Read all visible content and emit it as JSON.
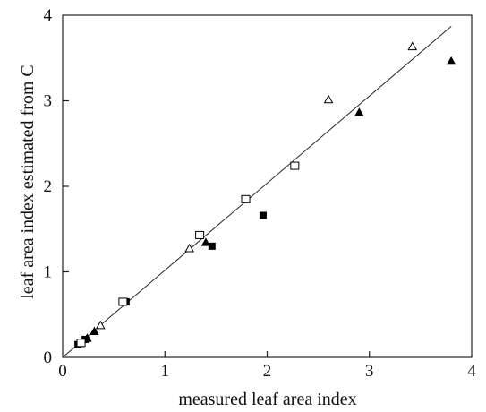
{
  "chart_data": {
    "type": "scatter",
    "title": "",
    "xlabel": "measured leaf area index",
    "ylabel": "leaf area index estimated from C",
    "xlim": [
      0,
      4
    ],
    "ylim": [
      0,
      4
    ],
    "x_ticks": [
      "0",
      "1",
      "2",
      "3",
      "4"
    ],
    "y_ticks": [
      "0",
      "1",
      "2",
      "3",
      "4"
    ],
    "grid": false,
    "legend": "none",
    "reference_line": {
      "label": "",
      "x": [
        0,
        3.8
      ],
      "y": [
        0,
        3.87
      ]
    },
    "series": [
      {
        "marker": "triangle-filled",
        "points": [
          {
            "x": 0.17,
            "y": 0.16
          },
          {
            "x": 0.24,
            "y": 0.22
          },
          {
            "x": 0.31,
            "y": 0.3
          },
          {
            "x": 1.4,
            "y": 1.34
          },
          {
            "x": 2.9,
            "y": 2.86
          },
          {
            "x": 3.8,
            "y": 3.46
          }
        ]
      },
      {
        "marker": "triangle-open",
        "points": [
          {
            "x": 0.37,
            "y": 0.37
          },
          {
            "x": 1.24,
            "y": 1.27
          },
          {
            "x": 2.6,
            "y": 3.01
          },
          {
            "x": 3.42,
            "y": 3.63
          }
        ]
      },
      {
        "marker": "square-filled",
        "points": [
          {
            "x": 0.15,
            "y": 0.15
          },
          {
            "x": 0.22,
            "y": 0.21
          },
          {
            "x": 0.62,
            "y": 0.65
          },
          {
            "x": 1.46,
            "y": 1.3
          },
          {
            "x": 1.96,
            "y": 1.66
          }
        ]
      },
      {
        "marker": "square-open",
        "points": [
          {
            "x": 0.18,
            "y": 0.17
          },
          {
            "x": 0.59,
            "y": 0.65
          },
          {
            "x": 1.34,
            "y": 1.43
          },
          {
            "x": 1.79,
            "y": 1.85
          },
          {
            "x": 2.27,
            "y": 2.24
          }
        ]
      }
    ]
  }
}
